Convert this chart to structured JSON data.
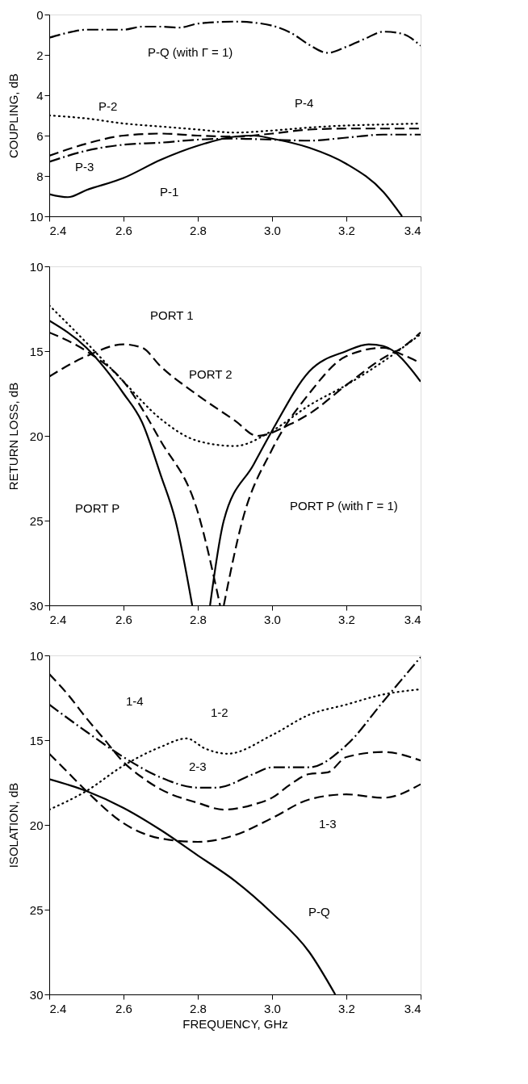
{
  "chart_data": [
    {
      "type": "line",
      "ylabel": "COUPLING, dB",
      "xlim": [
        2.4,
        3.4
      ],
      "ylim": [
        10,
        0
      ],
      "xticks": [
        {
          "value": 2.4,
          "label": "2.4"
        },
        {
          "value": 2.6,
          "label": "2.6"
        },
        {
          "value": 2.8,
          "label": "2.8"
        },
        {
          "value": 3.0,
          "label": "3.0"
        },
        {
          "value": 3.2,
          "label": "3.2"
        },
        {
          "value": 3.4,
          "label": "3.4"
        }
      ],
      "yticks": [
        0,
        2,
        4,
        6,
        8,
        10
      ],
      "grid": false,
      "series": [
        {
          "color": "#000000",
          "line_style": "dashdot",
          "x": [
            2.4,
            2.45,
            2.5,
            2.6,
            2.65,
            2.7,
            2.75,
            2.8,
            2.9,
            2.95,
            3.0,
            3.05,
            3.1,
            3.15,
            3.2,
            3.25,
            3.3,
            3.35,
            3.4
          ],
          "values": [
            1.15,
            0.9,
            0.75,
            0.75,
            0.6,
            0.6,
            0.65,
            0.45,
            0.35,
            0.4,
            0.55,
            0.9,
            1.5,
            1.9,
            1.6,
            1.2,
            0.85,
            0.95,
            1.55
          ]
        },
        {
          "color": "#000000",
          "line_style": "dotted",
          "x": [
            2.4,
            2.5,
            2.6,
            2.7,
            2.8,
            2.9,
            3.0,
            3.1,
            3.2,
            3.3,
            3.4
          ],
          "values": [
            5.0,
            5.15,
            5.4,
            5.55,
            5.7,
            5.85,
            5.75,
            5.6,
            5.5,
            5.45,
            5.4
          ]
        },
        {
          "color": "#000000",
          "line_style": "dashed",
          "x": [
            2.4,
            2.5,
            2.6,
            2.7,
            2.8,
            2.9,
            3.0,
            3.1,
            3.2,
            3.3,
            3.4
          ],
          "values": [
            7.0,
            6.4,
            6.0,
            5.9,
            6.0,
            6.05,
            5.9,
            5.7,
            5.65,
            5.65,
            5.65
          ]
        },
        {
          "color": "#000000",
          "line_style": "dashdot",
          "x": [
            2.4,
            2.5,
            2.6,
            2.7,
            2.8,
            2.9,
            3.0,
            3.1,
            3.2,
            3.3,
            3.4
          ],
          "values": [
            7.3,
            6.75,
            6.45,
            6.35,
            6.2,
            6.15,
            6.2,
            6.25,
            6.1,
            5.95,
            5.95
          ]
        },
        {
          "color": "#000000",
          "line_style": "solid",
          "x": [
            2.4,
            2.45,
            2.5,
            2.6,
            2.7,
            2.8,
            2.9,
            2.95,
            3.0,
            3.1,
            3.2,
            3.3,
            3.35
          ],
          "values": [
            8.9,
            9.05,
            8.7,
            8.1,
            7.2,
            6.5,
            6.05,
            6.0,
            6.15,
            6.6,
            7.4,
            8.8,
            10
          ]
        }
      ],
      "annotations": [
        "P-Q (with Γ = 1)",
        "P-2",
        "P-4",
        "P-3",
        "P-1"
      ]
    },
    {
      "type": "line",
      "ylabel": "RETURN LOSS, dB",
      "xlim": [
        2.4,
        3.4
      ],
      "ylim": [
        30,
        10
      ],
      "xticks": [
        {
          "value": 2.4,
          "label": "2.4"
        },
        {
          "value": 2.6,
          "label": "2.6"
        },
        {
          "value": 2.8,
          "label": "2.8"
        },
        {
          "value": 3.0,
          "label": "3.0"
        },
        {
          "value": 3.2,
          "label": "3.2"
        },
        {
          "value": 3.4,
          "label": "3.4"
        }
      ],
      "yticks": [
        10,
        15,
        20,
        25,
        30
      ],
      "grid": false,
      "series": [
        {
          "color": "#000000",
          "line_style": "dashed",
          "x": [
            2.4,
            2.5,
            2.6,
            2.65,
            2.7,
            2.8,
            2.9,
            2.96,
            3.05,
            3.1,
            3.2,
            3.3,
            3.35,
            3.4
          ],
          "values": [
            16.5,
            15.3,
            14.6,
            14.8,
            15.9,
            17.6,
            19.1,
            20.0,
            19.3,
            18.7,
            17.0,
            15.4,
            14.8,
            13.9
          ]
        },
        {
          "color": "#000000",
          "line_style": "dotted",
          "x": [
            2.4,
            2.5,
            2.6,
            2.7,
            2.8,
            2.9,
            3.0,
            3.1,
            3.2,
            3.3,
            3.4
          ],
          "values": [
            12.3,
            14.5,
            16.8,
            19.0,
            20.3,
            20.6,
            19.7,
            18.2,
            17.0,
            15.6,
            14.0
          ]
        },
        {
          "color": "#000000",
          "line_style": "solid",
          "x": [
            2.4,
            2.5,
            2.6,
            2.65,
            2.7,
            2.74,
            2.785,
            2.81,
            2.833,
            2.87,
            2.95,
            3.0,
            3.1,
            3.2,
            3.26,
            3.3,
            3.4
          ],
          "values": [
            13.2,
            14.8,
            17.5,
            19.2,
            22.3,
            25.0,
            30,
            null,
            30,
            25.0,
            21.7,
            19.7,
            16.2,
            15.0,
            14.6,
            14.7,
            16.8
          ]
        },
        {
          "color": "#000000",
          "line_style": "dashed",
          "x": [
            2.4,
            2.5,
            2.6,
            2.7,
            2.8,
            2.86,
            2.865,
            2.87,
            2.92,
            3.0,
            3.1,
            3.2,
            3.3,
            3.35,
            3.4
          ],
          "values": [
            13.9,
            15.0,
            16.8,
            20.3,
            24.5,
            30,
            null,
            30,
            25.0,
            20.8,
            17.5,
            15.3,
            14.8,
            15.2,
            15.7
          ]
        }
      ],
      "annotations": [
        "PORT 1",
        "PORT 2",
        "PORT P",
        "PORT P (with Γ = 1)"
      ]
    },
    {
      "type": "line",
      "ylabel": "ISOLATION, dB",
      "xlabel": "FREQUENCY, GHz",
      "xlim": [
        2.4,
        3.4
      ],
      "ylim": [
        30,
        10
      ],
      "xticks": [
        {
          "value": 2.4,
          "label": "2.4"
        },
        {
          "value": 2.6,
          "label": "2.6"
        },
        {
          "value": 2.8,
          "label": "2.8"
        },
        {
          "value": 3.0,
          "label": "3.0"
        },
        {
          "value": 3.2,
          "label": "3.2"
        },
        {
          "value": 3.4,
          "label": "3.4"
        }
      ],
      "yticks": [
        10,
        15,
        20,
        25,
        30
      ],
      "grid": false,
      "series": [
        {
          "color": "#000000",
          "line_style": "dashed",
          "x": [
            2.4,
            2.45,
            2.5,
            2.55,
            2.6,
            2.65,
            2.7,
            2.8,
            2.87,
            2.95,
            3.0,
            3.05,
            3.1,
            3.15,
            3.2,
            3.3,
            3.4
          ],
          "values": [
            11.1,
            12.3,
            13.7,
            15.0,
            16.3,
            17.2,
            17.9,
            18.7,
            19.1,
            18.8,
            18.4,
            17.6,
            17.0,
            16.9,
            16.0,
            15.7,
            16.2
          ]
        },
        {
          "color": "#000000",
          "line_style": "dotted",
          "x": [
            2.4,
            2.5,
            2.6,
            2.7,
            2.77,
            2.82,
            2.88,
            3.0,
            3.1,
            3.2,
            3.3,
            3.4
          ],
          "values": [
            19.1,
            18.0,
            16.5,
            15.4,
            14.9,
            15.5,
            15.8,
            14.7,
            13.5,
            12.9,
            12.3,
            12.0
          ]
        },
        {
          "color": "#000000",
          "line_style": "dashdot",
          "x": [
            2.4,
            2.5,
            2.6,
            2.7,
            2.8,
            2.85,
            2.95,
            3.0,
            3.1,
            3.2,
            3.3,
            3.35,
            3.4
          ],
          "values": [
            12.9,
            14.5,
            16.0,
            17.2,
            17.8,
            17.8,
            17.0,
            16.6,
            16.6,
            15.3,
            12.7,
            11.4,
            10.1
          ]
        },
        {
          "color": "#000000",
          "line_style": "dashed",
          "x": [
            2.4,
            2.45,
            2.5,
            2.6,
            2.7,
            2.8,
            2.9,
            3.0,
            3.1,
            3.2,
            3.3,
            3.4
          ],
          "values": [
            15.8,
            16.9,
            18.0,
            19.9,
            20.8,
            21.0,
            20.6,
            19.6,
            18.5,
            18.2,
            18.4,
            17.6
          ]
        },
        {
          "color": "#000000",
          "line_style": "solid",
          "x": [
            2.4,
            2.5,
            2.6,
            2.7,
            2.8,
            2.9,
            3.0,
            3.1,
            3.17
          ],
          "values": [
            17.3,
            18.0,
            19.0,
            20.3,
            21.8,
            23.3,
            25.2,
            27.5,
            30
          ]
        }
      ],
      "annotations": [
        "1-4",
        "1-2",
        "2-3",
        "1-3",
        "P-Q"
      ]
    }
  ]
}
